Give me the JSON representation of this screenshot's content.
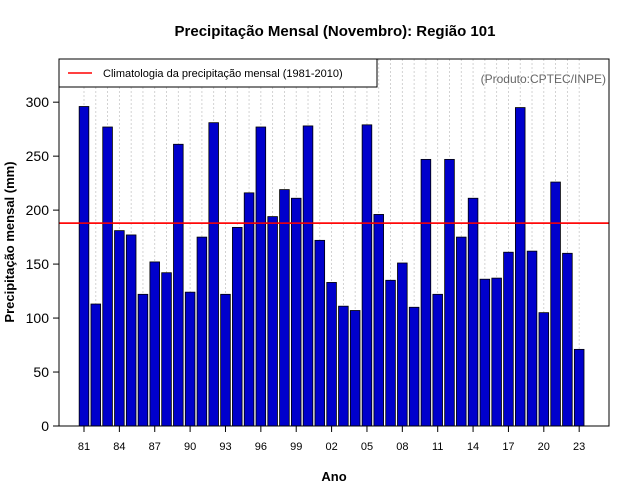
{
  "chart_data": {
    "type": "bar",
    "title": "Precipitação Mensal (Novembro): Região 101",
    "xlabel": "Ano",
    "ylabel": "Precipitação mensal (mm)",
    "ylim": [
      0,
      340
    ],
    "yticks": [
      0,
      50,
      100,
      150,
      200,
      250,
      300
    ],
    "grid": "vertical dotted",
    "categories": [
      "81",
      "82",
      "83",
      "84",
      "85",
      "86",
      "87",
      "88",
      "89",
      "90",
      "91",
      "92",
      "93",
      "94",
      "95",
      "96",
      "97",
      "98",
      "99",
      "00",
      "01",
      "02",
      "03",
      "04",
      "05",
      "06",
      "07",
      "08",
      "09",
      "10",
      "11",
      "12",
      "13",
      "14",
      "15",
      "16",
      "17",
      "18",
      "19",
      "20",
      "21",
      "22",
      "23"
    ],
    "x_tick_labels": [
      "81",
      "84",
      "87",
      "90",
      "93",
      "96",
      "99",
      "02",
      "05",
      "08",
      "11",
      "14",
      "17",
      "20",
      "23"
    ],
    "values": [
      296,
      113,
      277,
      181,
      177,
      122,
      152,
      142,
      261,
      124,
      175,
      281,
      122,
      184,
      216,
      277,
      194,
      219,
      211,
      278,
      172,
      133,
      111,
      107,
      279,
      196,
      135,
      151,
      110,
      247,
      122,
      247,
      175,
      211,
      136,
      137,
      161,
      295,
      162,
      105,
      226,
      160,
      71
    ],
    "climatology": {
      "label": "Climatologia da precipitação mensal (1981-2010)",
      "value": 188,
      "color": "#ff0000"
    },
    "bar_color": "#0000cc",
    "legend_position": "top-left",
    "source_note": "(Produto:CPTEC/INPE)"
  }
}
